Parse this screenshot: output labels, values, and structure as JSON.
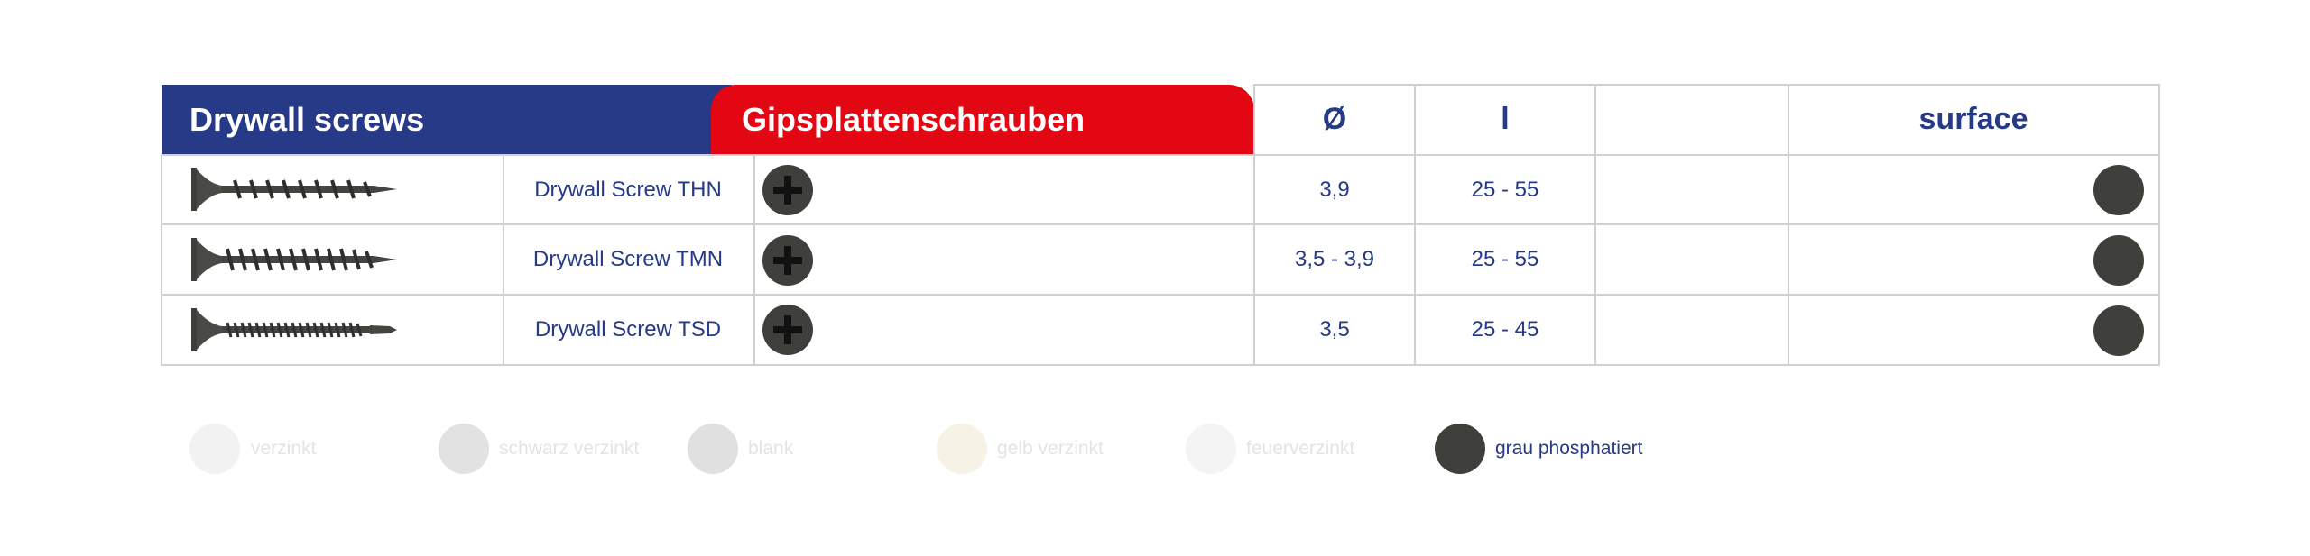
{
  "header": {
    "title_en": "Drywall screws",
    "title_de": "Gipsplattenschrauben",
    "col_diameter": "Ø",
    "col_length": "l",
    "col_empty": "",
    "col_surface": "surface"
  },
  "rows": [
    {
      "name": "Drywall Screw THN",
      "diameter": "3,9",
      "length": "25 - 55",
      "thread": "coarse",
      "head_icon": "phillips-head-icon",
      "surface_color": "#3f3f3c"
    },
    {
      "name": "Drywall Screw TMN",
      "diameter": "3,5 - 3,9",
      "length": "25 - 55",
      "thread": "coarse",
      "head_icon": "phillips-head-icon",
      "surface_color": "#3f3f3c"
    },
    {
      "name": "Drywall Screw TSD",
      "diameter": "3,5",
      "length": "25 - 45",
      "thread": "fine",
      "head_icon": "phillips-head-icon",
      "surface_color": "#3f3f3c"
    }
  ],
  "legend": [
    {
      "label": "verzinkt",
      "color": "#f2f2f2",
      "text_color": "#e4e4e4"
    },
    {
      "label": "schwarz verzinkt",
      "color": "#e2e2e2",
      "text_color": "#e4e4e4"
    },
    {
      "label": "blank",
      "color": "#e0e0e0",
      "text_color": "#e4e4e4"
    },
    {
      "label": "gelb verzinkt",
      "color": "#f6f3e6",
      "text_color": "#e4e4e4"
    },
    {
      "label": "feuerverzinkt",
      "color": "#f4f4f4",
      "text_color": "#e4e4e4"
    },
    {
      "label": "grau phosphatiert",
      "color": "#3f3f3c",
      "text_color": "#263a87"
    }
  ],
  "colors": {
    "brand_blue": "#263a87",
    "brand_red": "#e30613",
    "grid": "#cfd0d2"
  }
}
